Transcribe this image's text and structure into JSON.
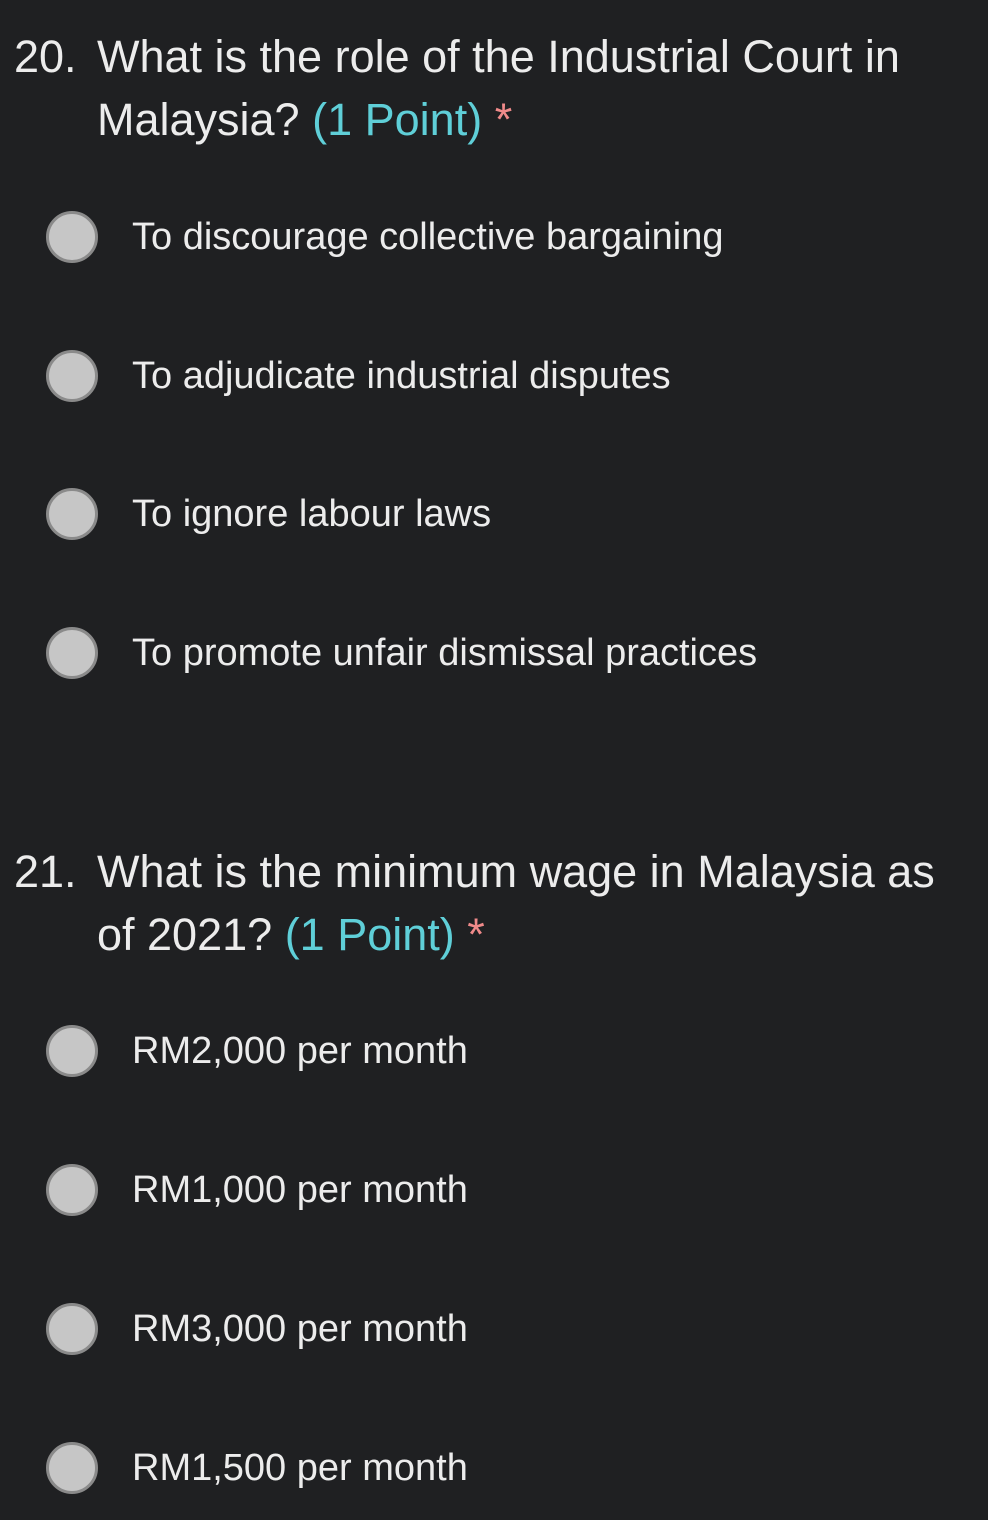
{
  "questions": [
    {
      "number": "20.",
      "line1": "What is the role of the Industrial Court in",
      "line2": "Malaysia?",
      "points": "(1 Point)",
      "required": "*",
      "options": [
        "To discourage collective bargaining",
        "To adjudicate industrial disputes",
        "To ignore labour laws",
        "To promote unfair dismissal practices"
      ]
    },
    {
      "number": "21.",
      "line1": "What is the minimum wage in Malaysia as",
      "line2": "of 2021?",
      "points": "(1 Point)",
      "required": "*",
      "options": [
        "RM2,000 per month",
        "RM1,000 per month",
        "RM3,000 per month",
        "RM1,500 per month"
      ]
    }
  ],
  "colors": {
    "background": "#1f2022",
    "points": "#5fcfd8",
    "required": "#f08a8a",
    "radio": "#c6c6c6"
  }
}
